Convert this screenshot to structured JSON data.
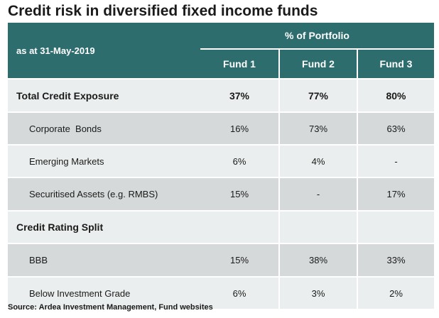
{
  "title": "Credit risk in diversified fixed income funds",
  "header": {
    "as_at": "as at 31-May-2019",
    "group_label": "% of Portfolio",
    "funds": [
      "Fund 1",
      "Fund 2",
      "Fund 3"
    ]
  },
  "rows": [
    {
      "label": "Total Credit Exposure",
      "values": [
        "37%",
        "77%",
        "80%"
      ]
    },
    {
      "label": "Corporate  Bonds",
      "values": [
        "16%",
        "73%",
        "63%"
      ]
    },
    {
      "label": "Emerging Markets",
      "values": [
        "6%",
        "4%",
        "-"
      ]
    },
    {
      "label": "Securitised Assets (e.g. RMBS)",
      "values": [
        "15%",
        "-",
        "17%"
      ]
    },
    {
      "label": "Credit Rating Split",
      "values": [
        "",
        "",
        ""
      ]
    },
    {
      "label": "BBB",
      "values": [
        "15%",
        "38%",
        "33%"
      ]
    },
    {
      "label": "Below Investment Grade",
      "values": [
        "6%",
        "3%",
        "2%"
      ]
    }
  ],
  "source": "Source: Ardea Investment Management, Fund websites",
  "colors": {
    "header_bg": "#2e6d6e",
    "row_light": "#ebeeee",
    "row_dark": "#d5d9d9"
  }
}
